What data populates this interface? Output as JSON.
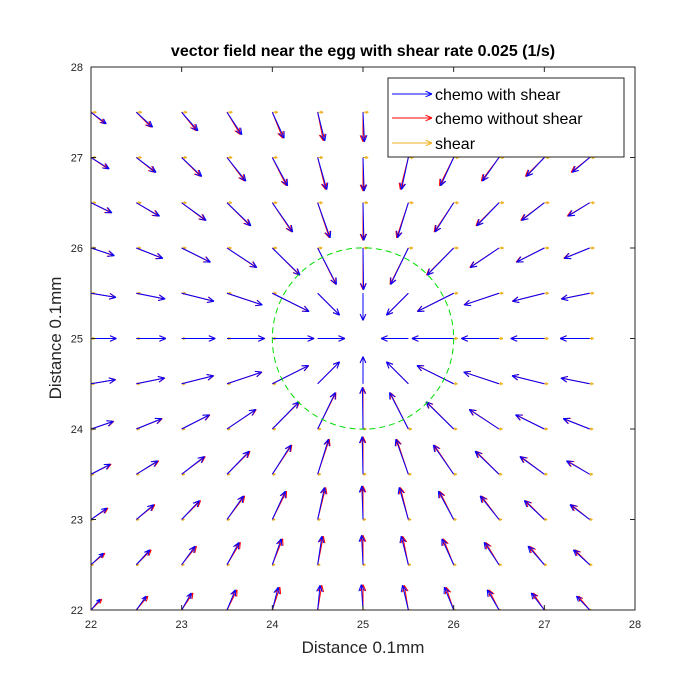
{
  "chart_data": {
    "type": "quiver",
    "title": "vector field near the egg with shear rate 0.025 (1/s)",
    "xlabel": "Distance 0.1mm",
    "ylabel": "Distance 0.1mm",
    "xlim": [
      22,
      28
    ],
    "ylim": [
      22,
      28
    ],
    "xticks": [
      "22",
      "23",
      "24",
      "25",
      "26",
      "27",
      "28"
    ],
    "yticks": [
      "22",
      "23",
      "24",
      "25",
      "26",
      "27",
      "28"
    ],
    "grid": false,
    "legend_position": "top-right",
    "colors": {
      "chemo_with_shear": "#0000ff",
      "chemo_without_shear": "#ff0000",
      "shear": "#edb120",
      "egg_boundary": "#00dd00",
      "axes": "#262626"
    },
    "series": [
      {
        "name": "chemo with shear",
        "color": "#0000ff"
      },
      {
        "name": "chemo without shear",
        "color": "#ff0000"
      },
      {
        "name": "shear",
        "color": "#edb120"
      }
    ],
    "grid_spacing": 0.5,
    "x_range": [
      22,
      27.5
    ],
    "y_range": [
      22,
      27.5
    ],
    "egg": {
      "center": [
        25,
        25
      ],
      "radius": 1
    },
    "shear_rate": 0.025
  }
}
